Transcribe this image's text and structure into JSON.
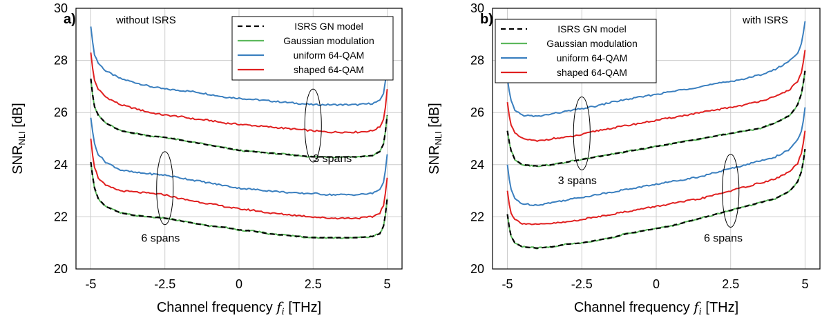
{
  "figure": {
    "xlabel_prefix": "Channel frequency ",
    "xlabel_var": "f",
    "xlabel_sub": "i",
    "xlabel_unit": " [THz]",
    "ylabel_main": "SNR",
    "ylabel_sub": "NLI",
    "ylabel_unit": " [dB]"
  },
  "colors": {
    "isrs_gn": "#000000",
    "gaussian": "#5cb85c",
    "uniform": "#3a7fbf",
    "shaped": "#e02020",
    "grid": "#cccccc"
  },
  "legend_entries": [
    "ISRS GN model",
    "Gaussian modulation",
    "uniform 64-QAM",
    "shaped 64-QAM"
  ],
  "chart_data": [
    {
      "type": "line",
      "panel_label": "a)",
      "annotation": "without ISRS",
      "xlabel": "Channel frequency f_i [THz]",
      "ylabel": "SNR_NLI [dB]",
      "xlim": [
        -5.5,
        5.5
      ],
      "ylim": [
        20,
        30
      ],
      "xticks": [
        -5,
        -2.5,
        0,
        2.5,
        5
      ],
      "xtick_labels": [
        "-5",
        "-2.5",
        "0",
        "2.5",
        "5"
      ],
      "yticks": [
        20,
        22,
        24,
        26,
        28,
        30
      ],
      "ytick_labels": [
        "20",
        "22",
        "24",
        "26",
        "28",
        "30"
      ],
      "grid": true,
      "legend_position": "top-right",
      "x": [
        -5,
        -4.9,
        -4.75,
        -4.5,
        -4,
        -3.5,
        -3,
        -2.5,
        -2,
        -1.5,
        -1,
        -0.5,
        0,
        0.5,
        1,
        1.5,
        2,
        2.5,
        3,
        3.5,
        4,
        4.5,
        4.75,
        4.9,
        5
      ],
      "series": [
        {
          "name": "uniform 64-QAM",
          "group": "3 spans",
          "values": [
            29.3,
            28.3,
            27.9,
            27.6,
            27.3,
            27.15,
            27.0,
            26.9,
            26.85,
            26.8,
            26.7,
            26.6,
            26.55,
            26.5,
            26.45,
            26.4,
            26.35,
            26.3,
            26.3,
            26.3,
            26.3,
            26.35,
            26.45,
            26.8,
            27.9
          ]
        },
        {
          "name": "shaped 64-QAM",
          "group": "3 spans",
          "values": [
            28.3,
            27.3,
            26.9,
            26.6,
            26.3,
            26.15,
            26.0,
            25.9,
            25.85,
            25.75,
            25.7,
            25.6,
            25.55,
            25.5,
            25.45,
            25.4,
            25.35,
            25.3,
            25.25,
            25.25,
            25.25,
            25.3,
            25.45,
            25.8,
            26.9
          ]
        },
        {
          "name": "Gaussian modulation",
          "group": "3 spans",
          "values": [
            27.3,
            26.3,
            25.9,
            25.6,
            25.3,
            25.2,
            25.1,
            25.05,
            24.95,
            24.85,
            24.75,
            24.65,
            24.55,
            24.5,
            24.45,
            24.4,
            24.35,
            24.3,
            24.3,
            24.3,
            24.3,
            24.35,
            24.5,
            24.85,
            25.9
          ]
        },
        {
          "name": "ISRS GN model",
          "group": "3 spans",
          "values": [
            27.3,
            26.3,
            25.9,
            25.6,
            25.3,
            25.2,
            25.1,
            25.05,
            24.95,
            24.85,
            24.75,
            24.65,
            24.55,
            24.5,
            24.45,
            24.4,
            24.35,
            24.3,
            24.3,
            24.3,
            24.3,
            24.35,
            24.5,
            24.85,
            25.9
          ]
        },
        {
          "name": "uniform 64-QAM",
          "group": "6 spans",
          "values": [
            25.8,
            24.9,
            24.4,
            24.1,
            23.8,
            23.7,
            23.65,
            23.6,
            23.5,
            23.4,
            23.3,
            23.2,
            23.1,
            23.05,
            23.0,
            22.95,
            22.9,
            22.9,
            22.85,
            22.85,
            22.85,
            22.9,
            23.05,
            23.4,
            24.4
          ]
        },
        {
          "name": "shaped 64-QAM",
          "group": "6 spans",
          "values": [
            25.0,
            24.0,
            23.5,
            23.2,
            23.0,
            22.95,
            22.9,
            22.85,
            22.7,
            22.6,
            22.5,
            22.4,
            22.3,
            22.25,
            22.15,
            22.1,
            22.05,
            22.0,
            21.95,
            21.95,
            21.95,
            22.0,
            22.15,
            22.5,
            23.5
          ]
        },
        {
          "name": "Gaussian modulation",
          "group": "6 spans",
          "values": [
            24.1,
            23.2,
            22.7,
            22.4,
            22.15,
            22.05,
            22.0,
            21.95,
            21.85,
            21.75,
            21.65,
            21.6,
            21.5,
            21.45,
            21.35,
            21.3,
            21.25,
            21.2,
            21.2,
            21.2,
            21.2,
            21.25,
            21.35,
            21.7,
            22.7
          ]
        },
        {
          "name": "ISRS GN model",
          "group": "6 spans",
          "values": [
            24.1,
            23.2,
            22.7,
            22.4,
            22.15,
            22.05,
            22.0,
            21.95,
            21.85,
            21.75,
            21.65,
            21.6,
            21.5,
            21.45,
            21.35,
            21.3,
            21.25,
            21.2,
            21.2,
            21.2,
            21.2,
            21.25,
            21.35,
            21.7,
            22.7
          ]
        }
      ],
      "annotations": [
        {
          "text": "3 spans",
          "x": 2.5,
          "y": 24.1,
          "ellipse_center": [
            2.5,
            25.5
          ],
          "ellipse_radius": [
            0.28,
            1.4
          ]
        },
        {
          "text": "6 spans",
          "x": -3.3,
          "y": 21.05,
          "ellipse_center": [
            -2.5,
            23.1
          ],
          "ellipse_radius": [
            0.28,
            1.4
          ]
        }
      ]
    },
    {
      "type": "line",
      "panel_label": "b)",
      "annotation": "with ISRS",
      "xlabel": "Channel frequency f_i [THz]",
      "ylabel": "SNR_NLI [dB]",
      "xlim": [
        -5.5,
        5.5
      ],
      "ylim": [
        20,
        30
      ],
      "xticks": [
        -5,
        -2.5,
        0,
        2.5,
        5
      ],
      "xtick_labels": [
        "-5",
        "-2.5",
        "0",
        "2.5",
        "5"
      ],
      "yticks": [
        20,
        22,
        24,
        26,
        28,
        30
      ],
      "ytick_labels": [
        "20",
        "22",
        "24",
        "26",
        "28",
        "30"
      ],
      "grid": true,
      "legend_position": "top-left",
      "x": [
        -5,
        -4.9,
        -4.75,
        -4.5,
        -4,
        -3.5,
        -3,
        -2.5,
        -2,
        -1.5,
        -1,
        -0.5,
        0,
        0.5,
        1,
        1.5,
        2,
        2.5,
        3,
        3.5,
        4,
        4.5,
        4.75,
        4.9,
        5
      ],
      "series": [
        {
          "name": "uniform 64-QAM",
          "group": "3 spans",
          "values": [
            27.3,
            26.5,
            26.1,
            25.9,
            25.85,
            25.95,
            26.05,
            26.15,
            26.25,
            26.4,
            26.5,
            26.6,
            26.7,
            26.8,
            26.9,
            27.0,
            27.1,
            27.2,
            27.3,
            27.45,
            27.65,
            28.0,
            28.3,
            28.7,
            29.5
          ]
        },
        {
          "name": "shaped 64-QAM",
          "group": "3 spans",
          "values": [
            26.4,
            25.6,
            25.2,
            25.0,
            24.9,
            25.0,
            25.05,
            25.15,
            25.3,
            25.4,
            25.5,
            25.6,
            25.7,
            25.8,
            25.9,
            26.0,
            26.1,
            26.2,
            26.3,
            26.45,
            26.6,
            26.9,
            27.2,
            27.6,
            28.4
          ]
        },
        {
          "name": "Gaussian modulation",
          "group": "3 spans",
          "values": [
            25.3,
            24.6,
            24.2,
            24.0,
            23.95,
            24.0,
            24.1,
            24.2,
            24.3,
            24.4,
            24.5,
            24.6,
            24.7,
            24.8,
            24.9,
            25.0,
            25.1,
            25.2,
            25.3,
            25.4,
            25.6,
            25.9,
            26.3,
            26.8,
            27.6
          ]
        },
        {
          "name": "ISRS GN model",
          "group": "3 spans",
          "values": [
            25.3,
            24.6,
            24.2,
            24.0,
            23.95,
            24.0,
            24.1,
            24.2,
            24.3,
            24.4,
            24.5,
            24.6,
            24.7,
            24.8,
            24.9,
            25.0,
            25.1,
            25.2,
            25.3,
            25.4,
            25.6,
            25.9,
            26.3,
            26.8,
            27.6
          ]
        },
        {
          "name": "uniform 64-QAM",
          "group": "6 spans",
          "values": [
            24.0,
            23.1,
            22.7,
            22.5,
            22.45,
            22.55,
            22.65,
            22.75,
            22.85,
            22.95,
            23.05,
            23.15,
            23.25,
            23.35,
            23.45,
            23.55,
            23.7,
            23.85,
            24.0,
            24.15,
            24.3,
            24.6,
            24.95,
            25.35,
            26.2
          ]
        },
        {
          "name": "shaped 64-QAM",
          "group": "6 spans",
          "values": [
            23.0,
            22.2,
            21.9,
            21.75,
            21.7,
            21.75,
            21.8,
            21.9,
            22.0,
            22.1,
            22.2,
            22.3,
            22.4,
            22.5,
            22.6,
            22.7,
            22.85,
            23.0,
            23.15,
            23.3,
            23.45,
            23.75,
            24.05,
            24.5,
            25.3
          ]
        },
        {
          "name": "Gaussian modulation",
          "group": "6 spans",
          "values": [
            22.1,
            21.3,
            21.0,
            20.85,
            20.8,
            20.85,
            20.95,
            21.0,
            21.1,
            21.2,
            21.35,
            21.45,
            21.55,
            21.65,
            21.8,
            21.95,
            22.1,
            22.25,
            22.4,
            22.55,
            22.7,
            23.0,
            23.35,
            23.8,
            24.6
          ]
        },
        {
          "name": "ISRS GN model",
          "group": "6 spans",
          "values": [
            22.1,
            21.3,
            21.0,
            20.85,
            20.8,
            20.85,
            20.95,
            21.0,
            21.1,
            21.2,
            21.35,
            21.45,
            21.55,
            21.65,
            21.8,
            21.95,
            22.1,
            22.25,
            22.4,
            22.55,
            22.7,
            23.0,
            23.35,
            23.8,
            24.6
          ]
        }
      ],
      "annotations": [
        {
          "text": "3 spans",
          "x": -3.3,
          "y": 23.25,
          "ellipse_center": [
            -2.5,
            25.2
          ],
          "ellipse_radius": [
            0.28,
            1.4
          ]
        },
        {
          "text": "6 spans",
          "x": 1.6,
          "y": 21.05,
          "ellipse_center": [
            2.5,
            23.0
          ],
          "ellipse_radius": [
            0.28,
            1.4
          ]
        }
      ]
    }
  ]
}
